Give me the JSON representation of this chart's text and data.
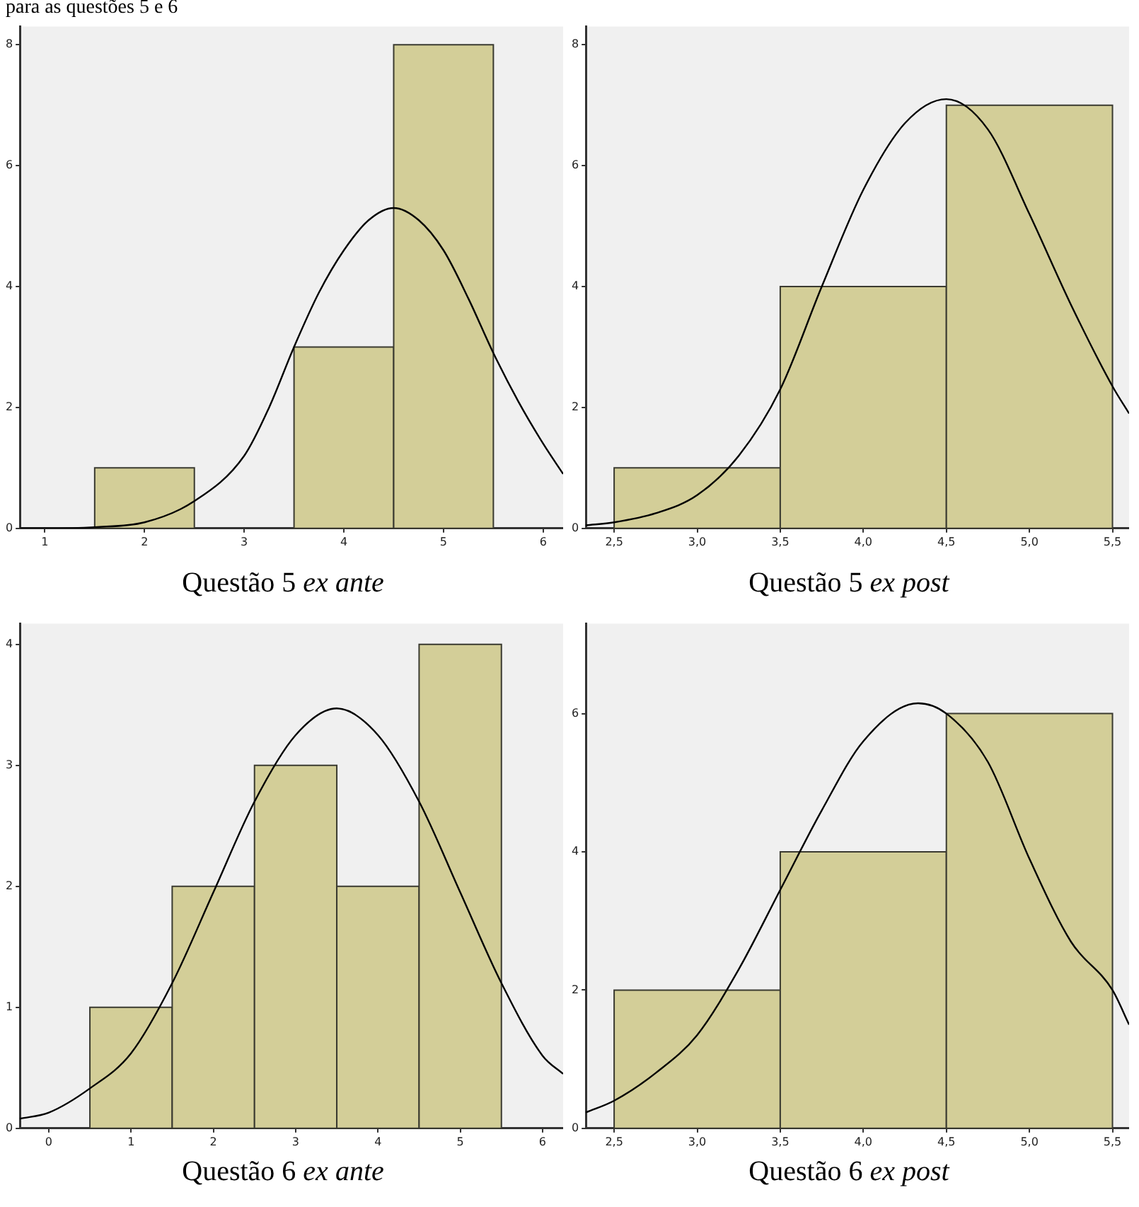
{
  "chart_data": [
    {
      "type": "histogram",
      "title": "Questão 5 ex ante",
      "annotations": [
        "para as questões 5 e 6"
      ],
      "bins": [
        1.5,
        2.5,
        3.5,
        4.5,
        5.5
      ],
      "values": [
        1,
        0,
        3,
        8
      ],
      "color": "#d3ce98",
      "xlim": [
        0.75,
        6.2
      ],
      "xticks": [
        1,
        2,
        3,
        4,
        5,
        6
      ],
      "ylim": [
        0,
        8.3
      ],
      "yticks": [
        0,
        2,
        4,
        6,
        8
      ],
      "series": [
        {
          "type": "line",
          "color": "#000000",
          "x": [
            0.75,
            1,
            1.5,
            2,
            2.5,
            3,
            3.25,
            3.5,
            3.75,
            4,
            4.25,
            4.5,
            4.75,
            5,
            5.25,
            5.5,
            5.75,
            6,
            6.2
          ],
          "values": [
            0,
            0,
            0.02,
            0.1,
            0.45,
            1.2,
            2,
            3,
            3.9,
            4.6,
            5.1,
            5.3,
            5.1,
            4.6,
            3.8,
            2.9,
            2.1,
            1.4,
            0.9
          ]
        }
      ]
    },
    {
      "type": "histogram",
      "title": "Questão 5 ex post",
      "bins": [
        2.5,
        3.5,
        4.5,
        5.5
      ],
      "values": [
        1,
        4,
        7
      ],
      "color": "#d3ce98",
      "xlim": [
        2.33,
        5.6
      ],
      "xticks": [
        {
          "value": 2.5,
          "label": "2,5"
        },
        {
          "value": 3,
          "label": "3,0"
        },
        {
          "value": 3.5,
          "label": "3,5"
        },
        {
          "value": 4,
          "label": "4,0"
        },
        {
          "value": 4.5,
          "label": "4,5"
        },
        {
          "value": 5,
          "label": "5,0"
        },
        {
          "value": 5.5,
          "label": "5,5"
        }
      ],
      "ylim": [
        0,
        8.3
      ],
      "yticks": [
        0,
        2,
        4,
        6,
        8
      ],
      "series": [
        {
          "type": "line",
          "color": "#000000",
          "x": [
            2.33,
            2.5,
            2.75,
            3,
            3.25,
            3.5,
            3.75,
            4,
            4.25,
            4.5,
            4.75,
            5,
            5.25,
            5.5,
            5.6
          ],
          "values": [
            0.05,
            0.1,
            0.25,
            0.55,
            1.2,
            2.3,
            4,
            5.6,
            6.7,
            7.1,
            6.6,
            5.2,
            3.7,
            2.35,
            1.9
          ]
        }
      ]
    },
    {
      "type": "histogram",
      "title": "Questão 6 ex ante",
      "bins": [
        0.5,
        1.5,
        2.5,
        3.5,
        4.5,
        5.5
      ],
      "values": [
        1,
        2,
        3,
        2,
        4
      ],
      "color": "#d3ce98",
      "xlim": [
        -0.35,
        6.25
      ],
      "xticks": [
        0,
        1,
        2,
        3,
        4,
        5,
        6
      ],
      "ylim": [
        0,
        4.17
      ],
      "yticks": [
        0,
        1,
        2,
        3,
        4
      ],
      "series": [
        {
          "type": "line",
          "color": "#000000",
          "x": [
            -0.35,
            0,
            0.5,
            1,
            1.5,
            2,
            2.5,
            3,
            3.5,
            4,
            4.5,
            5,
            5.5,
            6,
            6.25
          ],
          "values": [
            0.08,
            0.13,
            0.33,
            0.62,
            1.2,
            1.95,
            2.7,
            3.25,
            3.47,
            3.25,
            2.7,
            1.95,
            1.2,
            0.6,
            0.45
          ]
        }
      ]
    },
    {
      "type": "histogram",
      "title": "Questão 6 ex post",
      "bins": [
        2.5,
        3.5,
        4.5,
        5.5
      ],
      "values": [
        2,
        4,
        6
      ],
      "color": "#d3ce98",
      "xlim": [
        2.33,
        5.6
      ],
      "xticks": [
        {
          "value": 2.5,
          "label": "2,5"
        },
        {
          "value": 3,
          "label": "3,0"
        },
        {
          "value": 3.5,
          "label": "3,5"
        },
        {
          "value": 4,
          "label": "4,0"
        },
        {
          "value": 4.5,
          "label": "4,5"
        },
        {
          "value": 5,
          "label": "5,0"
        },
        {
          "value": 5.5,
          "label": "5,5"
        }
      ],
      "ylim": [
        0,
        7.3
      ],
      "yticks": [
        0,
        2,
        4,
        6
      ],
      "series": [
        {
          "type": "line",
          "color": "#000000",
          "x": [
            2.33,
            2.5,
            2.75,
            3,
            3.25,
            3.5,
            3.75,
            4,
            4.33,
            4.5,
            4.75,
            5,
            5.25,
            5.5,
            5.6
          ],
          "values": [
            0.23,
            0.4,
            0.8,
            1.35,
            2.3,
            3.45,
            4.6,
            5.6,
            6.15,
            6,
            5.3,
            3.9,
            2.7,
            2,
            1.5
          ]
        }
      ]
    }
  ]
}
